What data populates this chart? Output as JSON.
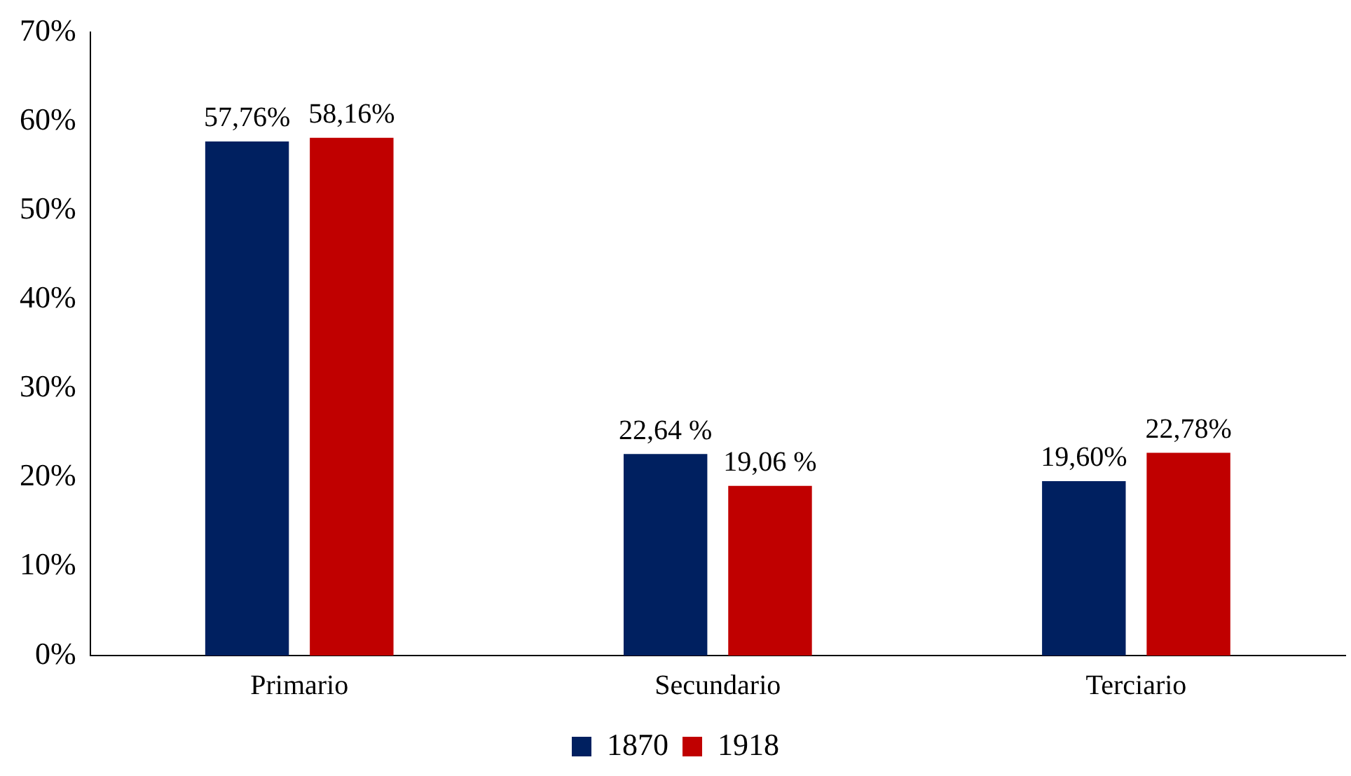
{
  "chart_data": {
    "type": "bar",
    "categories": [
      "Primario",
      "Secundario",
      "Terciario"
    ],
    "series": [
      {
        "name": "1870",
        "color": "#002060",
        "values": [
          57.76,
          22.64,
          19.6
        ],
        "value_labels": [
          "57,76%",
          "22,64 %",
          "19,60%"
        ]
      },
      {
        "name": "1918",
        "color": "#c00000",
        "values": [
          58.16,
          19.06,
          22.78
        ],
        "value_labels": [
          "58,16%",
          "19,06 %",
          "22,78%"
        ]
      }
    ],
    "ylim": [
      0,
      70
    ],
    "yticks": [
      {
        "value": 0,
        "label": "0%"
      },
      {
        "value": 10,
        "label": "10%"
      },
      {
        "value": 20,
        "label": "20%"
      },
      {
        "value": 30,
        "label": "30%"
      },
      {
        "value": 40,
        "label": "40%"
      },
      {
        "value": 50,
        "label": "50%"
      },
      {
        "value": 60,
        "label": "60%"
      },
      {
        "value": 70,
        "label": "70%"
      }
    ],
    "grid": false,
    "legend": "bottom"
  }
}
